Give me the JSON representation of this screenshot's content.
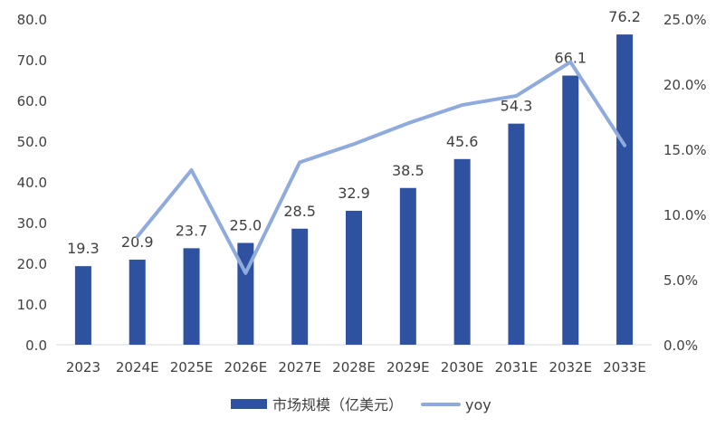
{
  "chart_data": {
    "type": "bar+line",
    "categories": [
      "2023",
      "2024E",
      "2025E",
      "2026E",
      "2027E",
      "2028E",
      "2029E",
      "2030E",
      "2031E",
      "2032E",
      "2033E"
    ],
    "series": [
      {
        "name": "市场规模（亿美元）",
        "type": "bar",
        "axis": "left",
        "color": "#2E52A0",
        "values": [
          19.3,
          20.9,
          23.7,
          25.0,
          28.5,
          32.9,
          38.5,
          45.6,
          54.3,
          66.1,
          76.2
        ],
        "labels": [
          "19.3",
          "20.9",
          "23.7",
          "25.0",
          "28.5",
          "32.9",
          "38.5",
          "45.6",
          "54.3",
          "66.1",
          "76.2"
        ]
      },
      {
        "name": "yoy",
        "type": "line",
        "axis": "right",
        "color": "#8FAADC",
        "values": [
          null,
          8.3,
          13.4,
          5.5,
          14.0,
          15.4,
          17.0,
          18.4,
          19.1,
          21.7,
          15.3
        ]
      }
    ],
    "left_axis": {
      "ylim": [
        0,
        80
      ],
      "ticks": [
        "0.0",
        "10.0",
        "20.0",
        "30.0",
        "40.0",
        "50.0",
        "60.0",
        "70.0",
        "80.0"
      ]
    },
    "right_axis": {
      "ylim": [
        0,
        25
      ],
      "ticks": [
        "0.0%",
        "5.0%",
        "10.0%",
        "15.0%",
        "20.0%",
        "25.0%"
      ]
    },
    "grid": false,
    "legend": "bottom"
  }
}
